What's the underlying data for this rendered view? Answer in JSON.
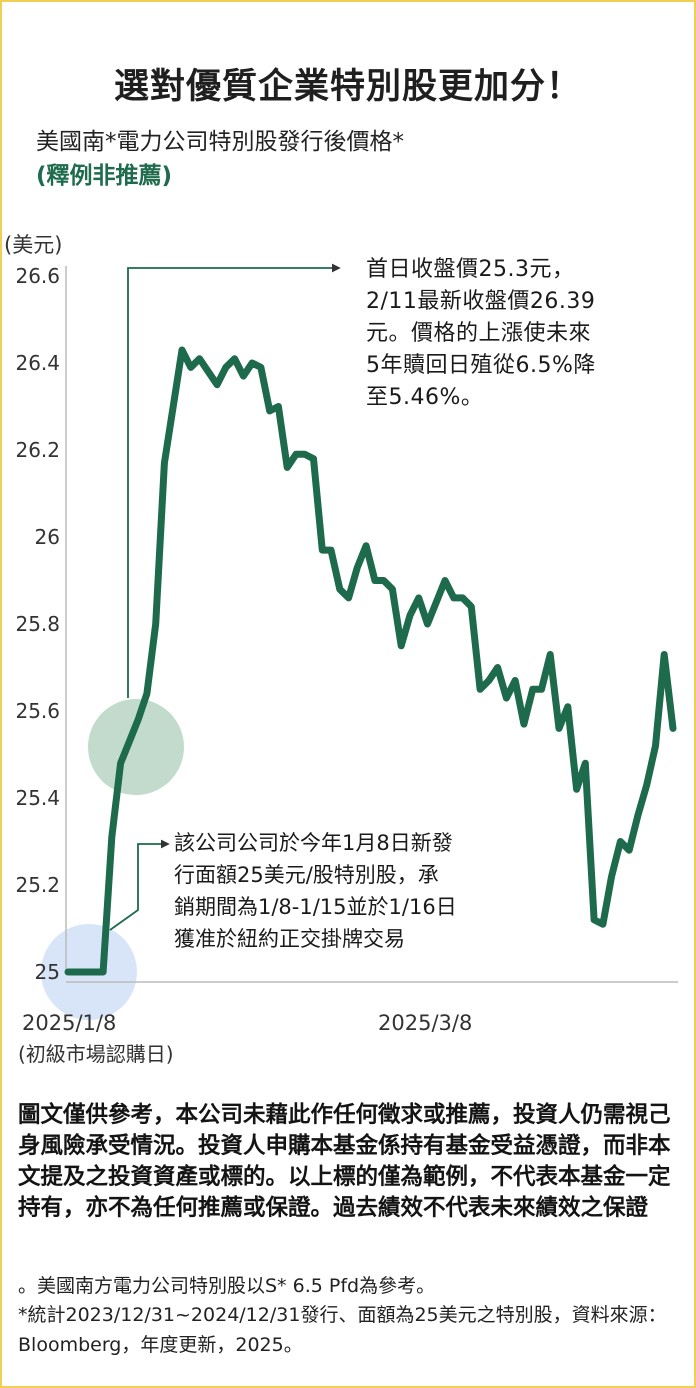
{
  "header": {
    "title": "選對優質企業特別股更加分！",
    "subtitle": "美國南*電力公司特別股發行後價格*",
    "subtitle_note": "(釋例非推薦)"
  },
  "chart_data": {
    "type": "line",
    "ylabel": "(美元)",
    "ylim": [
      25,
      26.6
    ],
    "yticks": [
      "26.6",
      "26.4",
      "26.2",
      "26",
      "25.8",
      "25.6",
      "25.4",
      "25.2",
      "25"
    ],
    "ytick_values": [
      26.6,
      26.4,
      26.2,
      26,
      25.8,
      25.6,
      25.4,
      25.2,
      25
    ],
    "x_tick_labels": [
      "2025/1/8",
      "2025/3/8"
    ],
    "x_tick_sublabel": "(初級市場認購日)",
    "colors": {
      "line": "#1d6a4c",
      "accent_circle": "#8fbea3",
      "start_circle": "#c8daf6",
      "connector": "#1d6a4c"
    },
    "series": [
      {
        "values": [
          25.0,
          25.0,
          25.0,
          25.0,
          25.0,
          25.31,
          25.48,
          25.53,
          25.58,
          25.64,
          25.8,
          26.17,
          26.3,
          26.43,
          26.39,
          26.41,
          26.38,
          26.35,
          26.39,
          26.41,
          26.37,
          26.4,
          26.39,
          26.29,
          26.3,
          26.16,
          26.19,
          26.19,
          26.18,
          25.97,
          25.97,
          25.88,
          25.86,
          25.93,
          25.98,
          25.9,
          25.9,
          25.88,
          25.75,
          25.82,
          25.86,
          25.8,
          25.85,
          25.9,
          25.86,
          25.86,
          25.84,
          25.65,
          25.67,
          25.7,
          25.63,
          25.67,
          25.57,
          25.65,
          25.65,
          25.73,
          25.56,
          25.61,
          25.42,
          25.48,
          25.12,
          25.11,
          25.22,
          25.3,
          25.28,
          25.36,
          25.43,
          25.52,
          25.73,
          25.56
        ]
      }
    ],
    "annotations": {
      "first_day_note": "首日收盤價25.3元，2/11最新收盤價26.39元。價格的上漲使未來5年贖回日殖從6.5%降至5.46%。",
      "first_day_lines": [
        "首日收盤價25.3元，",
        "2/11最新收盤價26.39",
        "元。價格的上漲使未來",
        "5年贖回日殖從6.5%降",
        "至5.46%。"
      ],
      "issue_note": "該公司公司於今年1月8日新發行面額25美元/股特別股，承銷期間為1/8-1/15並於1/16日獲准於紐約正交掛牌交易",
      "issue_lines": [
        "該公司公司於今年1月8日新發",
        "行面額25美元/股特別股，承",
        "銷期間為1/8-1/15並於1/16日",
        "獲准於紐約正交掛牌交易"
      ]
    }
  },
  "disclaimer": "圖文僅供參考，本公司未藉此作任何徵求或推薦，投資人仍需視己身風險承受情況。投資人申購本基金係持有基金受益憑證，而非本文提及之投資資產或標的。以上標的僅為範例，不代表本基金一定持有，亦不為任何推薦或保證。過去績效不代表未來績效之保證",
  "footnote_1": "。美國南方電力公司特別股以S* 6.5 Pfd為參考。",
  "footnote_2": "*統計2023/12/31~2024/12/31發行、面額為25美元之特別股，資料來源：Bloomberg，年度更新，2025。"
}
